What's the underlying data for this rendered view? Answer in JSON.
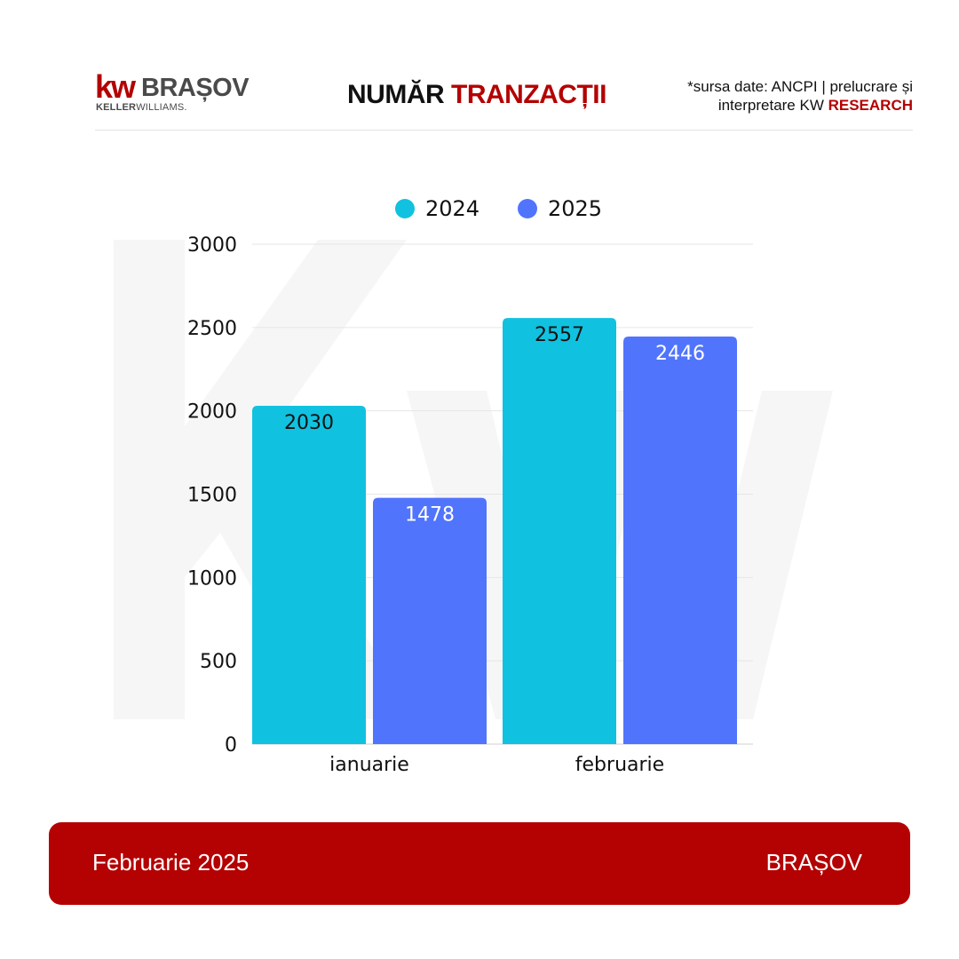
{
  "header": {
    "logo_kw": "kw",
    "logo_city": "BRAȘOV",
    "logo_sub_bold": "KELLER",
    "logo_sub_rest": "WILLIAMS.",
    "title_main": "NUMĂR ",
    "title_accent": "TRANZACȚII",
    "source_line1": "*sursa date: ANCPI  |  prelucrare și",
    "source_line2_plain": "interpretare  KW ",
    "source_line2_accent": "RESEARCH"
  },
  "footer": {
    "left": "Februarie 2025",
    "right": "BRAȘOV"
  },
  "colors": {
    "brand_red": "#b40101",
    "series_2024": "#10c2e0",
    "series_2025": "#5174fd"
  },
  "chart_data": {
    "type": "bar",
    "title": "NUMĂR TRANZACȚII",
    "categories": [
      "ianuarie",
      "februarie"
    ],
    "series": [
      {
        "name": "2024",
        "values": [
          2030,
          2557
        ],
        "color": "#10c2e0",
        "label_color": "#111111"
      },
      {
        "name": "2025",
        "values": [
          1478,
          2446
        ],
        "color": "#5174fd",
        "label_color": "#ffffff"
      }
    ],
    "ylim": [
      0,
      3000
    ],
    "yticks": [
      0,
      500,
      1000,
      1500,
      2000,
      2500,
      3000
    ],
    "grid": true,
    "legend": "top-center",
    "xlabel": "",
    "ylabel": ""
  }
}
